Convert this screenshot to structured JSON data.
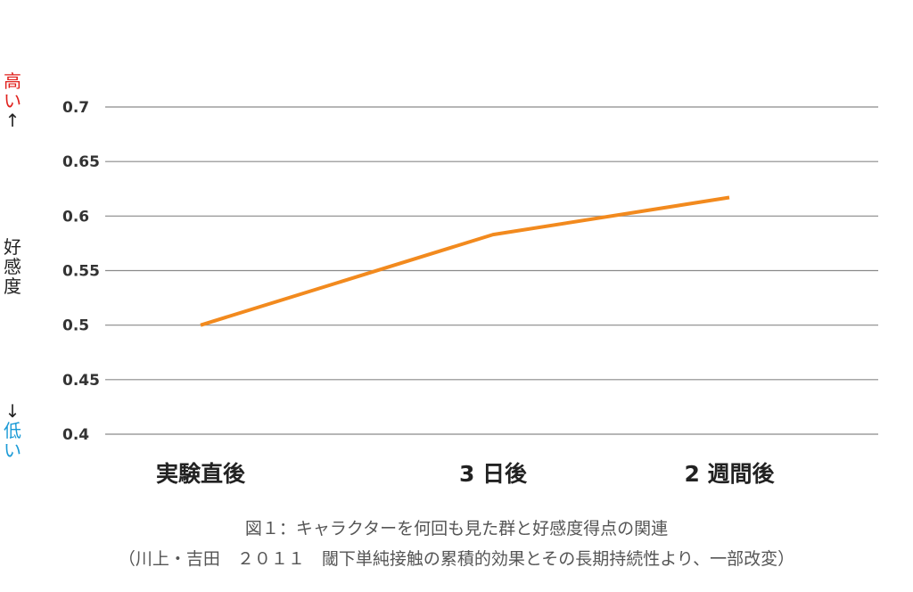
{
  "chart_data": {
    "type": "line",
    "categories": [
      "実験直後",
      "3 日後",
      "2 週間後"
    ],
    "series": [
      {
        "values": [
          0.5,
          0.583,
          0.617
        ],
        "color": "#f28a1e"
      }
    ],
    "yticks": [
      "0.7",
      "0.65",
      "0.6",
      "0.55",
      "0.5",
      "0.45",
      "0.4"
    ],
    "ylim": [
      0.4,
      0.7
    ],
    "grid": true
  },
  "yaxis_label": {
    "high": [
      "高",
      "い",
      "↑"
    ],
    "middle": [
      "好",
      "感",
      "度"
    ],
    "low": [
      "↓",
      "低",
      "い"
    ]
  },
  "caption": {
    "line1": "図１：キャラクターを何回も見た群と好感度得点の関連",
    "line2": "（川上・吉田　２０１１　閾下単純接触の累積的効果とその長期持続性より、一部改変）"
  }
}
